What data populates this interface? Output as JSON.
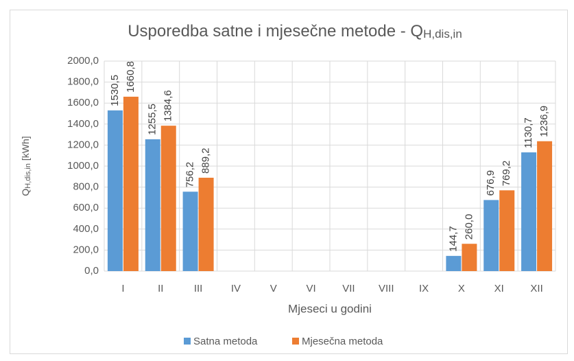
{
  "chart_data": {
    "type": "bar",
    "title": {
      "text": "Usporedba satne i mjesečne metode - Q",
      "subscript": "H,dis,in"
    },
    "y_label": {
      "text": "Q",
      "subscript": "H,dis,in",
      "unit": " [kWh]"
    },
    "x_label": "Mjeseci u godini",
    "categories": [
      "I",
      "II",
      "III",
      "IV",
      "V",
      "VI",
      "VII",
      "VIII",
      "IX",
      "X",
      "XI",
      "XII"
    ],
    "series": [
      {
        "name": "Satna metoda",
        "color": "#5b9bd5",
        "values": [
          1530.5,
          1255.5,
          756.2,
          null,
          null,
          null,
          null,
          null,
          null,
          144.7,
          676.9,
          1130.7
        ],
        "value_labels": [
          "1530,5",
          "1255,5",
          "756,2",
          null,
          null,
          null,
          null,
          null,
          null,
          "144,7",
          "676,9",
          "1130,7"
        ]
      },
      {
        "name": "Mjesečna metoda",
        "color": "#ed7d31",
        "values": [
          1660.8,
          1384.6,
          889.2,
          null,
          null,
          null,
          null,
          null,
          null,
          260.0,
          769.2,
          1236.9
        ],
        "value_labels": [
          "1660,8",
          "1384,6",
          "889,2",
          null,
          null,
          null,
          null,
          null,
          null,
          "260,0",
          "769,2",
          "1236,9"
        ]
      }
    ],
    "ylim": [
      0,
      2000
    ],
    "yticks": [
      {
        "value": 0,
        "label": "0,0"
      },
      {
        "value": 200,
        "label": "200,0"
      },
      {
        "value": 400,
        "label": "400,0"
      },
      {
        "value": 600,
        "label": "600,0"
      },
      {
        "value": 800,
        "label": "800,0"
      },
      {
        "value": 1000,
        "label": "1000,0"
      },
      {
        "value": 1200,
        "label": "1200,0"
      },
      {
        "value": 1400,
        "label": "1400,0"
      },
      {
        "value": 1600,
        "label": "1600,0"
      },
      {
        "value": 1800,
        "label": "1800,0"
      },
      {
        "value": 2000,
        "label": "2000,0"
      }
    ],
    "grid": true,
    "legend": "bottom"
  }
}
